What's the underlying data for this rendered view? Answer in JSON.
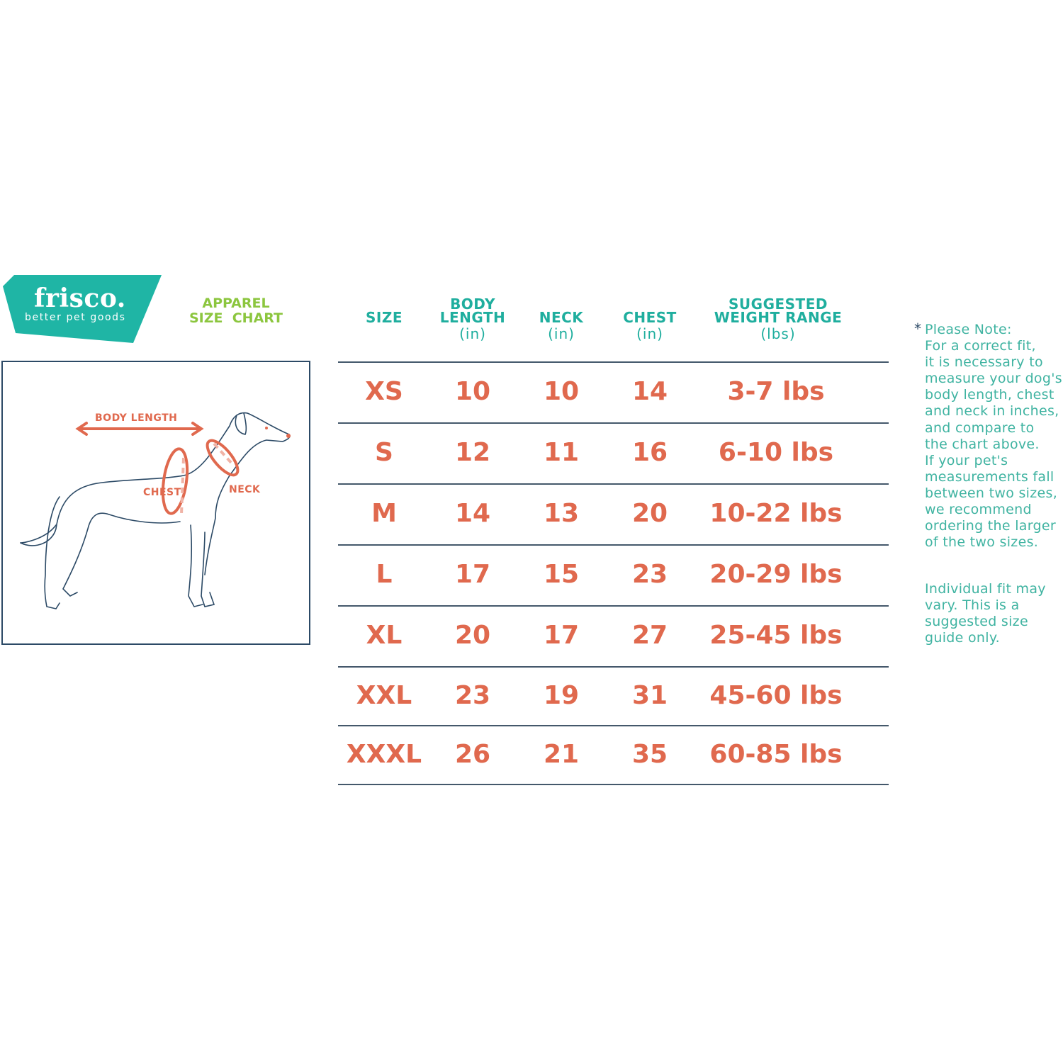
{
  "brand": {
    "name": "frisco.",
    "tagline": "better pet goods",
    "color": "#1fb5a5"
  },
  "title": {
    "line1": "APPAREL",
    "line2": "SIZE  CHART"
  },
  "figure": {
    "body_length_label": "BODY LENGTH",
    "chest_label": "CHEST",
    "neck_label": "NECK"
  },
  "table": {
    "headers": [
      {
        "main": "SIZE",
        "unit": ""
      },
      {
        "main": "BODY LENGTH",
        "unit": "(in)"
      },
      {
        "main": "NECK",
        "unit": "(in)"
      },
      {
        "main": "CHEST",
        "unit": "(in)"
      },
      {
        "main": "SUGGESTED WEIGHT RANGE",
        "unit": "(lbs)"
      }
    ],
    "rows": [
      [
        "XS",
        "10",
        "10",
        "14",
        "3-7 lbs"
      ],
      [
        "S",
        "12",
        "11",
        "16",
        "6-10 lbs"
      ],
      [
        "M",
        "14",
        "13",
        "20",
        "10-22 lbs"
      ],
      [
        "L",
        "17",
        "15",
        "23",
        "20-29 lbs"
      ],
      [
        "XL",
        "20",
        "17",
        "27",
        "25-45 lbs"
      ],
      [
        "XXL",
        "23",
        "19",
        "31",
        "45-60 lbs"
      ],
      [
        "XXXL",
        "26",
        "21",
        "35",
        "60-85 lbs"
      ]
    ]
  },
  "note": {
    "asterisk": "*",
    "text": "Please Note:\nFor a correct fit,\nit is necessary to\nmeasure your dog's\nbody length, chest\nand neck in inches,\nand compare to\nthe chart above.\nIf your pet's\nmeasurements fall\nbetween two sizes,\nwe recommend\nordering the larger\nof the two sizes.",
    "disclaimer": "Individual fit may\nvary. This is a\nsuggested size\nguide only."
  },
  "colors": {
    "teal": "#1fae9e",
    "orange": "#e0694e",
    "green": "#8cc63f",
    "navy": "#2c4a66"
  }
}
